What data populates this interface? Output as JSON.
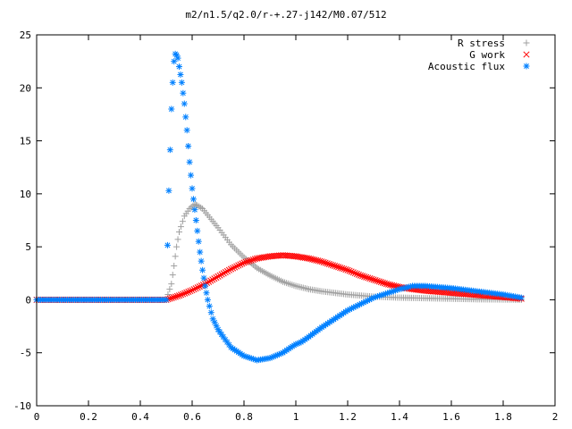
{
  "chart_data": {
    "type": "scatter",
    "title": "m2/n1.5/q2.0/r-+.27-j142/M0.07/512",
    "xlabel": "",
    "ylabel": "",
    "xlim": [
      0,
      2
    ],
    "ylim": [
      -10,
      25
    ],
    "grid": false,
    "legend_position": "top-right",
    "x_ticks": [
      "0",
      "0.2",
      "0.4",
      "0.6",
      "0.8",
      "1",
      "1.2",
      "1.4",
      "1.6",
      "1.8",
      "2"
    ],
    "y_ticks": [
      "-10",
      "-5",
      "0",
      "5",
      "10",
      "15",
      "20",
      "25"
    ],
    "series": [
      {
        "name": "R stress",
        "marker": "plus",
        "color": "#a0a0a0",
        "x": [
          0.0,
          0.5,
          0.52,
          0.53,
          0.54,
          0.55,
          0.57,
          0.59,
          0.61,
          0.62,
          0.64,
          0.66,
          0.68,
          0.7,
          0.75,
          0.8,
          0.85,
          0.9,
          0.95,
          1.0,
          1.05,
          1.1,
          1.2,
          1.3,
          1.4,
          1.5,
          1.6,
          1.7,
          1.8,
          1.87
        ],
        "y": [
          0.0,
          0.0,
          1.5,
          3.2,
          5.0,
          6.4,
          7.9,
          8.6,
          9.0,
          8.9,
          8.6,
          8.0,
          7.4,
          6.8,
          5.2,
          4.0,
          3.0,
          2.3,
          1.7,
          1.3,
          1.0,
          0.8,
          0.5,
          0.3,
          0.2,
          0.15,
          0.1,
          0.05,
          0.03,
          0.0
        ]
      },
      {
        "name": "G work",
        "marker": "cross",
        "color": "#ff0000",
        "x": [
          0.0,
          0.5,
          0.55,
          0.6,
          0.65,
          0.7,
          0.75,
          0.8,
          0.85,
          0.9,
          0.95,
          1.0,
          1.05,
          1.1,
          1.15,
          1.2,
          1.25,
          1.3,
          1.35,
          1.4,
          1.45,
          1.5,
          1.55,
          1.6,
          1.65,
          1.7,
          1.75,
          1.8,
          1.87
        ],
        "y": [
          0.0,
          0.0,
          0.4,
          0.9,
          1.5,
          2.2,
          2.9,
          3.5,
          3.9,
          4.1,
          4.2,
          4.1,
          3.9,
          3.6,
          3.2,
          2.8,
          2.3,
          1.9,
          1.5,
          1.2,
          1.0,
          0.85,
          0.75,
          0.65,
          0.55,
          0.45,
          0.35,
          0.25,
          0.1
        ]
      },
      {
        "name": "Acoustic flux",
        "marker": "star",
        "color": "#0080ff",
        "x": [
          0.0,
          0.5,
          0.51,
          0.52,
          0.525,
          0.53,
          0.535,
          0.54,
          0.545,
          0.55,
          0.56,
          0.57,
          0.58,
          0.59,
          0.6,
          0.61,
          0.62,
          0.63,
          0.64,
          0.65,
          0.66,
          0.68,
          0.7,
          0.72,
          0.75,
          0.8,
          0.85,
          0.9,
          0.95,
          0.98,
          1.0,
          1.02,
          1.05,
          1.1,
          1.2,
          1.3,
          1.4,
          1.45,
          1.5,
          1.6,
          1.7,
          1.8,
          1.87
        ],
        "y": [
          0.0,
          0.0,
          10.3,
          18.0,
          20.5,
          22.5,
          23.2,
          23.1,
          22.8,
          22.0,
          20.5,
          18.5,
          16.0,
          13.0,
          10.5,
          8.5,
          6.5,
          4.5,
          2.8,
          1.3,
          0.0,
          -1.8,
          -2.8,
          -3.5,
          -4.5,
          -5.3,
          -5.7,
          -5.5,
          -5.0,
          -4.5,
          -4.2,
          -4.0,
          -3.5,
          -2.6,
          -1.0,
          0.2,
          1.0,
          1.3,
          1.3,
          1.1,
          0.8,
          0.5,
          0.2
        ]
      }
    ]
  }
}
